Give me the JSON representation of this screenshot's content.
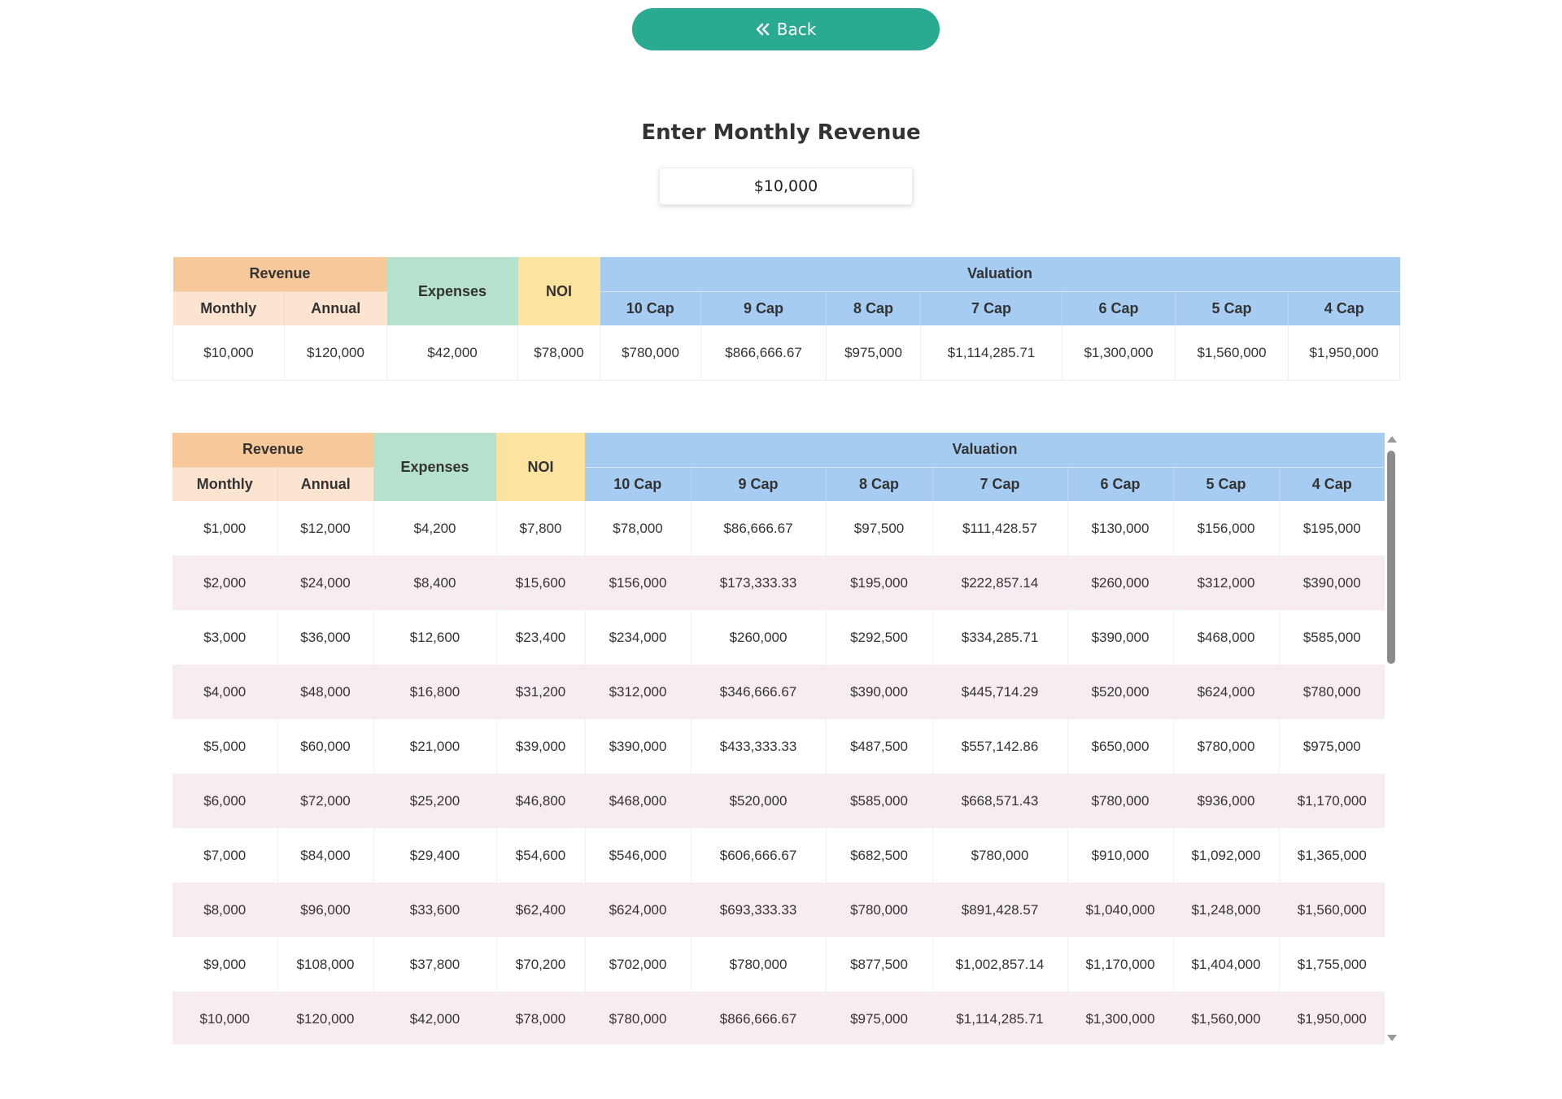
{
  "back_button": {
    "label": "Back",
    "icon": "double-chevron-left-icon"
  },
  "title": "Enter Monthly Revenue",
  "revenue_input": {
    "value": "$10,000"
  },
  "headers": {
    "revenue": "Revenue",
    "monthly": "Monthly",
    "annual": "Annual",
    "expenses": "Expenses",
    "noi": "NOI",
    "valuation": "Valuation",
    "caps": [
      "10 Cap",
      "9 Cap",
      "8 Cap",
      "7 Cap",
      "6 Cap",
      "5 Cap",
      "4 Cap"
    ]
  },
  "summary_row": [
    "$10,000",
    "$120,000",
    "$42,000",
    "$78,000",
    "$780,000",
    "$866,666.67",
    "$975,000",
    "$1,114,285.71",
    "$1,300,000",
    "$1,560,000",
    "$1,950,000"
  ],
  "rows": [
    [
      "$1,000",
      "$12,000",
      "$4,200",
      "$7,800",
      "$78,000",
      "$86,666.67",
      "$97,500",
      "$111,428.57",
      "$130,000",
      "$156,000",
      "$195,000"
    ],
    [
      "$2,000",
      "$24,000",
      "$8,400",
      "$15,600",
      "$156,000",
      "$173,333.33",
      "$195,000",
      "$222,857.14",
      "$260,000",
      "$312,000",
      "$390,000"
    ],
    [
      "$3,000",
      "$36,000",
      "$12,600",
      "$23,400",
      "$234,000",
      "$260,000",
      "$292,500",
      "$334,285.71",
      "$390,000",
      "$468,000",
      "$585,000"
    ],
    [
      "$4,000",
      "$48,000",
      "$16,800",
      "$31,200",
      "$312,000",
      "$346,666.67",
      "$390,000",
      "$445,714.29",
      "$520,000",
      "$624,000",
      "$780,000"
    ],
    [
      "$5,000",
      "$60,000",
      "$21,000",
      "$39,000",
      "$390,000",
      "$433,333.33",
      "$487,500",
      "$557,142.86",
      "$650,000",
      "$780,000",
      "$975,000"
    ],
    [
      "$6,000",
      "$72,000",
      "$25,200",
      "$46,800",
      "$468,000",
      "$520,000",
      "$585,000",
      "$668,571.43",
      "$780,000",
      "$936,000",
      "$1,170,000"
    ],
    [
      "$7,000",
      "$84,000",
      "$29,400",
      "$54,600",
      "$546,000",
      "$606,666.67",
      "$682,500",
      "$780,000",
      "$910,000",
      "$1,092,000",
      "$1,365,000"
    ],
    [
      "$8,000",
      "$96,000",
      "$33,600",
      "$62,400",
      "$624,000",
      "$693,333.33",
      "$780,000",
      "$891,428.57",
      "$1,040,000",
      "$1,248,000",
      "$1,560,000"
    ],
    [
      "$9,000",
      "$108,000",
      "$37,800",
      "$70,200",
      "$702,000",
      "$780,000",
      "$877,500",
      "$1,002,857.14",
      "$1,170,000",
      "$1,404,000",
      "$1,755,000"
    ],
    [
      "$10,000",
      "$120,000",
      "$42,000",
      "$78,000",
      "$780,000",
      "$866,666.67",
      "$975,000",
      "$1,114,285.71",
      "$1,300,000",
      "$1,560,000",
      "$1,950,000"
    ]
  ]
}
